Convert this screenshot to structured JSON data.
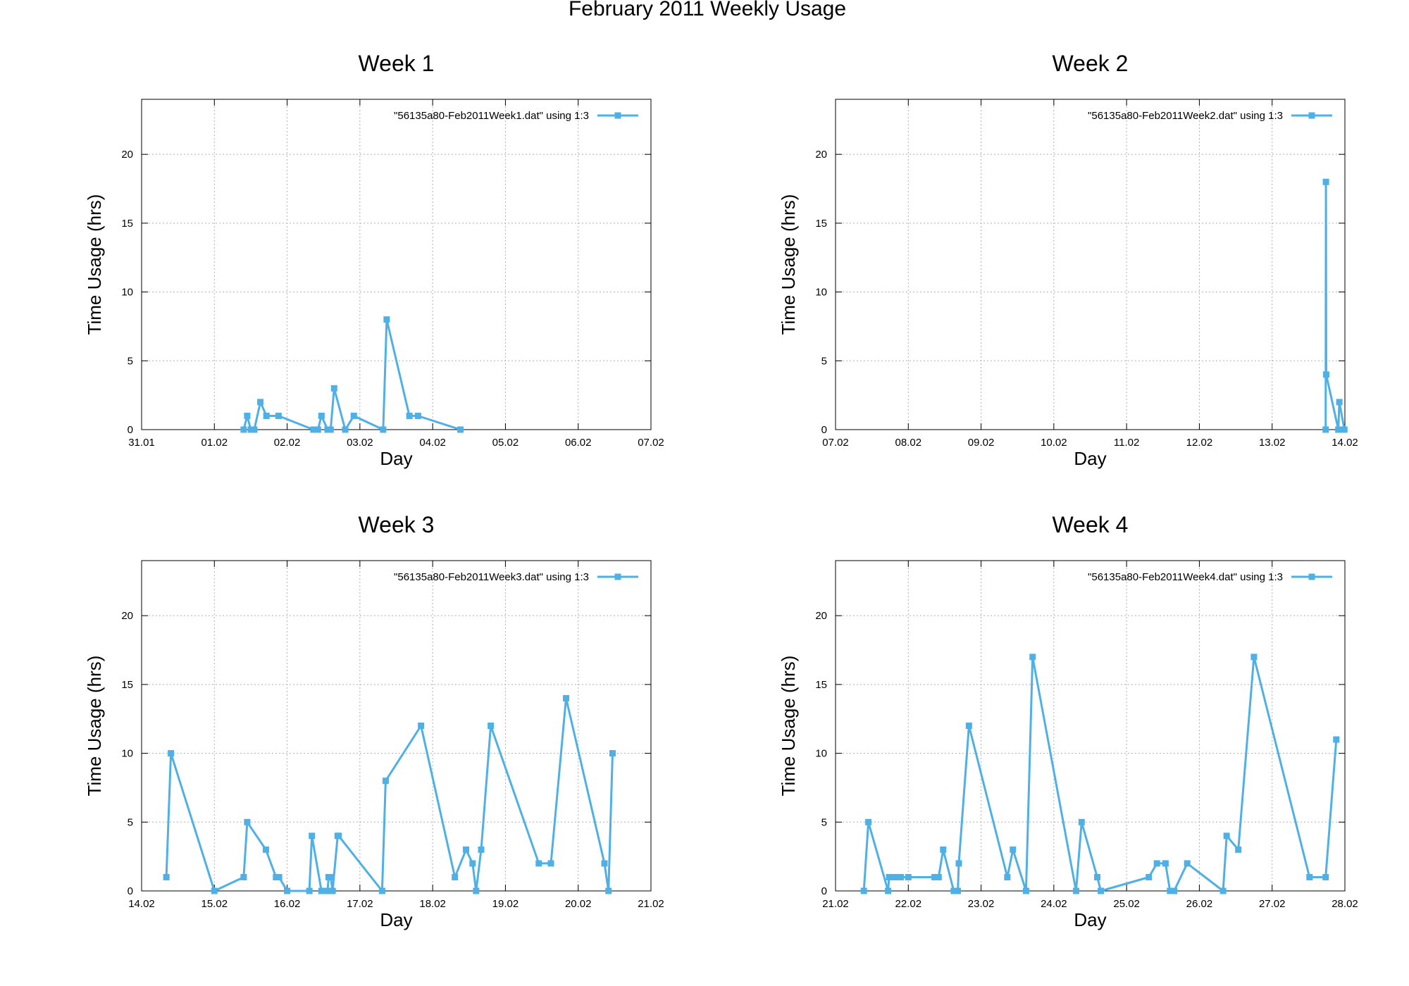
{
  "figure_title": "February 2011 Weekly Usage",
  "series_color": "#4EB0E5",
  "chart_data": [
    {
      "type": "line",
      "title": "Week 1",
      "xlabel": "Day",
      "ylabel": "Time Usage (hrs)",
      "xlim": [
        "31.01",
        "07.02"
      ],
      "ylim": [
        0,
        24
      ],
      "xticks": [
        "31.01",
        "01.02",
        "02.02",
        "03.02",
        "04.02",
        "05.02",
        "06.02",
        "07.02"
      ],
      "yticks": [
        0,
        5,
        10,
        15,
        20
      ],
      "grid": true,
      "legend_position": "top-right",
      "series": [
        {
          "name": "\"56135a80-Feb2011Week1.dat\" using 1:3",
          "x": [
            "01.02 09:40",
            "01.02 10:50",
            "01.02 12:00",
            "01.02 13:10",
            "01.02 15:10",
            "01.02 17:10",
            "01.02 21:10",
            "02.02 08:40",
            "02.02 10:10",
            "02.02 11:20",
            "02.02 13:20",
            "02.02 14:20",
            "02.02 15:30",
            "02.02 19:10",
            "02.02 22:00",
            "03.02 07:40",
            "03.02 08:50",
            "03.02 16:20",
            "03.02 19:10",
            "04.02 09:10"
          ],
          "y": [
            0,
            1,
            0,
            0,
            2,
            1,
            1,
            0,
            0,
            1,
            0,
            0,
            3,
            0,
            1,
            0,
            8,
            1,
            1,
            0
          ]
        }
      ]
    },
    {
      "type": "line",
      "title": "Week 2",
      "xlabel": "Day",
      "ylabel": "Time Usage (hrs)",
      "xlim": [
        "07.02",
        "14.02"
      ],
      "ylim": [
        0,
        24
      ],
      "xticks": [
        "07.02",
        "08.02",
        "09.02",
        "10.02",
        "11.02",
        "12.02",
        "13.02",
        "14.02"
      ],
      "yticks": [
        0,
        5,
        10,
        15,
        20
      ],
      "grid": true,
      "legend_position": "top-right",
      "series": [
        {
          "name": "\"56135a80-Feb2011Week2.dat\" using 1:3",
          "x": [
            "13.02 17:40",
            "13.02 17:45",
            "13.02 17:50",
            "13.02 21:50",
            "13.02 22:10",
            "13.02 23:50"
          ],
          "y": [
            0,
            18,
            4,
            0,
            2,
            0
          ]
        }
      ]
    },
    {
      "type": "line",
      "title": "Week 3",
      "xlabel": "Day",
      "ylabel": "Time Usage (hrs)",
      "xlim": [
        "14.02",
        "21.02"
      ],
      "ylim": [
        0,
        24
      ],
      "xticks": [
        "14.02",
        "15.02",
        "16.02",
        "17.02",
        "18.02",
        "19.02",
        "20.02",
        "21.02"
      ],
      "yticks": [
        0,
        5,
        10,
        15,
        20
      ],
      "grid": true,
      "legend_position": "top-right",
      "series": [
        {
          "name": "\"56135a80-Feb2011Week3.dat\" using 1:3",
          "x": [
            "14.02 08:10",
            "14.02 09:40",
            "15.02 00:00",
            "15.02 09:40",
            "15.02 10:50",
            "15.02 17:00",
            "15.02 20:20",
            "15.02 21:20",
            "16.02 00:00",
            "16.02 07:20",
            "16.02 08:10",
            "16.02 11:20",
            "16.02 13:20",
            "16.02 13:40",
            "16.02 14:20",
            "16.02 15:00",
            "16.02 16:40",
            "16.02 17:00",
            "17.02 07:20",
            "17.02 08:30",
            "17.02 20:10",
            "18.02 07:20",
            "18.02 11:00",
            "18.02 13:10",
            "18.02 14:20",
            "18.02 16:00",
            "18.02 19:10",
            "19.02 11:00",
            "19.02 15:00",
            "19.02 20:00",
            "20.02 08:40",
            "20.02 10:00",
            "20.02 11:20"
          ],
          "y": [
            1,
            10,
            0,
            1,
            5,
            3,
            1,
            1,
            0,
            0,
            4,
            0,
            0,
            1,
            1,
            0,
            4,
            4,
            0,
            8,
            12,
            1,
            3,
            2,
            0,
            3,
            12,
            2,
            2,
            14,
            2,
            0,
            10
          ]
        }
      ]
    },
    {
      "type": "line",
      "title": "Week 4",
      "xlabel": "Day",
      "ylabel": "Time Usage (hrs)",
      "xlim": [
        "21.02",
        "28.02"
      ],
      "ylim": [
        0,
        24
      ],
      "xticks": [
        "21.02",
        "22.02",
        "23.02",
        "24.02",
        "25.02",
        "26.02",
        "27.02",
        "28.02"
      ],
      "yticks": [
        0,
        5,
        10,
        15,
        20
      ],
      "grid": true,
      "legend_position": "top-right",
      "series": [
        {
          "name": "\"56135a80-Feb2011Week4.dat\" using 1:3",
          "x": [
            "21.02 09:20",
            "21.02 10:50",
            "21.02 17:20",
            "21.02 17:40",
            "21.02 19:00",
            "21.02 20:40",
            "21.02 21:30",
            "22.02 00:00",
            "22.02 08:40",
            "22.02 10:00",
            "22.02 11:30",
            "22.02 15:00",
            "22.02 16:20",
            "22.02 16:40",
            "22.02 20:00",
            "23.02 08:40",
            "23.02 10:30",
            "23.02 14:50",
            "23.02 17:00",
            "24.02 07:20",
            "24.02 09:10",
            "24.02 14:20",
            "24.02 15:30",
            "25.02 07:20",
            "25.02 10:00",
            "25.02 12:50",
            "25.02 14:20",
            "25.02 15:40",
            "25.02 20:00",
            "26.02 07:50",
            "26.02 09:00",
            "26.02 12:50",
            "26.02 18:00",
            "27.02 12:20",
            "27.02 17:40",
            "27.02 21:10"
          ],
          "y": [
            0,
            5,
            0,
            1,
            1,
            1,
            1,
            1,
            1,
            1,
            3,
            0,
            0,
            2,
            12,
            1,
            3,
            0,
            17,
            0,
            5,
            1,
            0,
            1,
            2,
            2,
            0,
            0,
            2,
            0,
            4,
            3,
            17,
            1,
            1,
            11
          ]
        }
      ]
    }
  ]
}
